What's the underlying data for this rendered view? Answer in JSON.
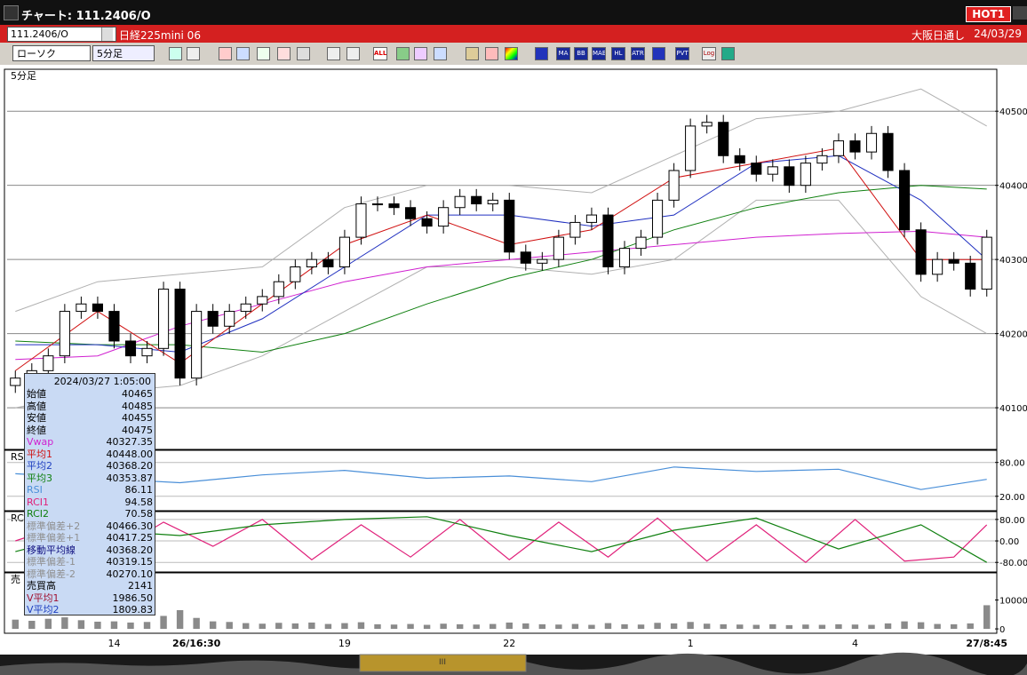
{
  "window": {
    "title": "チャート: 111.2406/O",
    "badge": "HOT1"
  },
  "header": {
    "symbol": "111.2406/O",
    "name": "日経225mini 06",
    "session": "大阪日通し",
    "date": "24/03/29"
  },
  "toolbar": {
    "chart_type": "ローソク",
    "interval": "5分足",
    "icons": [
      "ALL",
      "MA",
      "BB",
      "MAE",
      "HL",
      "ATR",
      "PVT",
      "Log"
    ]
  },
  "info_panel": {
    "datetime": "2024/03/27 1:05:00",
    "rows": [
      {
        "label": "始値",
        "value": "40465",
        "color": "#000000"
      },
      {
        "label": "高値",
        "value": "40485",
        "color": "#000000"
      },
      {
        "label": "安値",
        "value": "40455",
        "color": "#000000"
      },
      {
        "label": "終値",
        "value": "40475",
        "color": "#000000"
      },
      {
        "label": "Vwap",
        "value": "40327.35",
        "color": "#d020d0"
      },
      {
        "label": "平均1",
        "value": "40448.00",
        "color": "#d01010"
      },
      {
        "label": "平均2",
        "value": "40368.20",
        "color": "#2040c0"
      },
      {
        "label": "平均3",
        "value": "40353.87",
        "color": "#108010"
      },
      {
        "label": "RSI",
        "value": "86.11",
        "color": "#4a8fd8"
      },
      {
        "label": "RCI1",
        "value": "94.58",
        "color": "#e0207a"
      },
      {
        "label": "RCI2",
        "value": "70.58",
        "color": "#108010"
      },
      {
        "label": "標準偏差+2",
        "value": "40466.30",
        "color": "#909090"
      },
      {
        "label": "標準偏差+1",
        "value": "40417.25",
        "color": "#909090"
      },
      {
        "label": "移動平均線",
        "value": "40368.20",
        "color": "#101080"
      },
      {
        "label": "標準偏差-1",
        "value": "40319.15",
        "color": "#909090"
      },
      {
        "label": "標準偏差-2",
        "value": "40270.10",
        "color": "#909090"
      },
      {
        "label": "売買高",
        "value": "2141",
        "color": "#000000"
      },
      {
        "label": "V平均1",
        "value": "1986.50",
        "color": "#a01030"
      },
      {
        "label": "V平均2",
        "value": "1809.83",
        "color": "#2040c0"
      }
    ]
  },
  "chart_data": [
    {
      "type": "candlestick",
      "label": "5分足",
      "categories": [
        null,
        null,
        null,
        null,
        null,
        null,
        "14",
        null,
        null,
        null,
        null,
        "26/16:30",
        null,
        null,
        null,
        null,
        null,
        null,
        null,
        null,
        "19",
        null,
        null,
        null,
        null,
        null,
        null,
        null,
        null,
        null,
        "22",
        null,
        null,
        null,
        null,
        null,
        null,
        null,
        null,
        null,
        null,
        "1",
        null,
        null,
        null,
        null,
        null,
        null,
        null,
        null,
        null,
        "4",
        null,
        null,
        null,
        null,
        null,
        null,
        null,
        "27/8:45"
      ],
      "open": [
        40130,
        40140,
        40150,
        40170,
        40230,
        40240,
        40230,
        40190,
        40170,
        40180,
        40260,
        40140,
        40230,
        40210,
        40230,
        40240,
        40250,
        40270,
        40290,
        40300,
        40290,
        40330,
        40375,
        40375,
        40370,
        40355,
        40345,
        40370,
        40385,
        40375,
        40380,
        40310,
        40295,
        40300,
        40330,
        40350,
        40360,
        40290,
        40315,
        40330,
        40380,
        40420,
        40480,
        40485,
        40440,
        40430,
        40415,
        40425,
        40400,
        40430,
        40440,
        40460,
        40445,
        40470,
        40420,
        40340,
        40280,
        40300,
        40295,
        40260
      ],
      "high": [
        40150,
        40160,
        40180,
        40240,
        40250,
        40250,
        40240,
        40200,
        40190,
        40270,
        40270,
        40240,
        40240,
        40240,
        40250,
        40260,
        40280,
        40300,
        40310,
        40310,
        40340,
        40385,
        40385,
        40385,
        40380,
        40365,
        40380,
        40395,
        40395,
        40390,
        40390,
        40320,
        40310,
        40340,
        40360,
        40370,
        40370,
        40325,
        40340,
        40390,
        40430,
        40490,
        40495,
        40495,
        40450,
        40440,
        40435,
        40435,
        40440,
        40450,
        40470,
        40470,
        40480,
        40480,
        40430,
        40350,
        40310,
        40310,
        40305,
        40340
      ],
      "low": [
        40120,
        40130,
        40140,
        40160,
        40220,
        40220,
        40180,
        40160,
        40160,
        40170,
        40130,
        40130,
        40200,
        40200,
        40220,
        40230,
        40240,
        40260,
        40280,
        40280,
        40280,
        40320,
        40365,
        40360,
        40345,
        40335,
        40335,
        40360,
        40365,
        40365,
        40300,
        40285,
        40285,
        40290,
        40320,
        40340,
        40280,
        40280,
        40305,
        40320,
        40370,
        40410,
        40470,
        40430,
        40420,
        40405,
        40405,
        40390,
        40390,
        40420,
        40430,
        40435,
        40435,
        40410,
        40330,
        40270,
        40270,
        40285,
        40250,
        40250
      ],
      "close": [
        40140,
        40150,
        40170,
        40230,
        40240,
        40230,
        40190,
        40170,
        40180,
        40260,
        40140,
        40230,
        40210,
        40230,
        40240,
        40250,
        40270,
        40290,
        40300,
        40290,
        40330,
        40375,
        40375,
        40370,
        40355,
        40345,
        40370,
        40385,
        40375,
        40380,
        40310,
        40295,
        40300,
        40330,
        40350,
        40360,
        40290,
        40315,
        40330,
        40380,
        40420,
        40480,
        40485,
        40440,
        40430,
        40415,
        40425,
        40400,
        40430,
        40440,
        40460,
        40445,
        40470,
        40420,
        40340,
        40280,
        40300,
        40295,
        40260,
        40330
      ],
      "up_color": "#ffffff",
      "down_color": "#000000",
      "ylim": [
        40045,
        40535
      ],
      "yticks": [
        40100,
        40200,
        40300,
        40400,
        40500
      ],
      "grid": true,
      "overlays": [
        {
          "color": "#b0b0b0",
          "x": [
            0,
            5,
            10,
            15,
            20,
            25,
            30,
            35,
            40,
            45,
            50,
            55,
            59
          ],
          "values": [
            40230,
            40270,
            40280,
            40290,
            40370,
            40400,
            40400,
            40390,
            40440,
            40490,
            40500,
            40530,
            40480
          ]
        },
        {
          "color": "#b0b0b0",
          "x": [
            0,
            5,
            10,
            15,
            20,
            25,
            30,
            35,
            40,
            45,
            50,
            55,
            59
          ],
          "values": [
            40100,
            40120,
            40130,
            40170,
            40230,
            40290,
            40290,
            40280,
            40300,
            40380,
            40380,
            40250,
            40200
          ]
        },
        {
          "color": "#d020d0",
          "x": [
            0,
            5,
            10,
            15,
            20,
            25,
            30,
            35,
            40,
            45,
            50,
            55,
            59
          ],
          "values": [
            40165,
            40170,
            40210,
            40240,
            40270,
            40290,
            40300,
            40310,
            40320,
            40330,
            40335,
            40338,
            40330
          ]
        },
        {
          "color": "#108010",
          "x": [
            0,
            5,
            10,
            15,
            20,
            25,
            30,
            35,
            40,
            45,
            50,
            55,
            59
          ],
          "values": [
            40190,
            40185,
            40185,
            40175,
            40200,
            40240,
            40275,
            40300,
            40340,
            40370,
            40390,
            40400,
            40395
          ]
        },
        {
          "color": "#2030c0",
          "x": [
            0,
            5,
            10,
            15,
            20,
            25,
            30,
            35,
            40,
            45,
            50,
            55,
            59
          ],
          "values": [
            40185,
            40185,
            40175,
            40220,
            40290,
            40360,
            40360,
            40345,
            40360,
            40430,
            40440,
            40380,
            40300
          ]
        },
        {
          "color": "#d01010",
          "x": [
            0,
            5,
            10,
            15,
            20,
            25,
            30,
            35,
            40,
            45,
            50,
            55,
            59
          ],
          "values": [
            40150,
            40230,
            40160,
            40240,
            40320,
            40360,
            40320,
            40340,
            40410,
            40430,
            40450,
            40300,
            40300
          ]
        }
      ]
    },
    {
      "type": "line",
      "label": "RS",
      "ylim": [
        -4,
        100
      ],
      "yticks": [
        {
          "value": 80,
          "label": "80.00"
        },
        {
          "value": 20,
          "label": "20.00"
        }
      ],
      "grid": true,
      "series": [
        {
          "color": "#4a8fd8",
          "x": [
            0,
            5,
            10,
            15,
            20,
            25,
            30,
            35,
            40,
            45,
            50,
            55,
            59
          ],
          "values": [
            60,
            52,
            44,
            58,
            66,
            52,
            56,
            46,
            72,
            64,
            68,
            32,
            50
          ]
        }
      ]
    },
    {
      "type": "line",
      "label": "RC",
      "ylim": [
        -109,
        106
      ],
      "yticks": [
        {
          "value": 80,
          "label": "80.00"
        },
        {
          "value": 0,
          "label": "0.00"
        },
        {
          "value": -80,
          "label": "-80.00"
        }
      ],
      "grid": true,
      "series": [
        {
          "color": "#e0207a",
          "x": [
            0,
            3,
            6,
            9,
            12,
            15,
            18,
            21,
            24,
            27,
            30,
            33,
            36,
            39,
            42,
            45,
            48,
            51,
            54,
            57,
            59
          ],
          "values": [
            0,
            60,
            -40,
            70,
            -20,
            80,
            -70,
            60,
            -60,
            80,
            -70,
            70,
            -60,
            85,
            -75,
            60,
            -80,
            80,
            -75,
            -60,
            60
          ]
        },
        {
          "color": "#108010",
          "x": [
            0,
            5,
            10,
            15,
            20,
            25,
            30,
            35,
            40,
            45,
            50,
            55,
            59
          ],
          "values": [
            -40,
            40,
            20,
            60,
            80,
            90,
            20,
            -40,
            40,
            85,
            -30,
            60,
            -80
          ]
        }
      ]
    },
    {
      "type": "bar",
      "label": "売",
      "color": "#8a8a8a",
      "ylim": [
        -900,
        18800
      ],
      "yticks": [
        10000,
        0
      ],
      "values": [
        3200,
        2800,
        3500,
        4000,
        3000,
        2500,
        2600,
        2200,
        2400,
        4500,
        6500,
        3800,
        2600,
        2400,
        2000,
        1800,
        2100,
        1900,
        2200,
        1700,
        2000,
        2300,
        1600,
        1500,
        1700,
        1400,
        1800,
        1600,
        1500,
        1700,
        2200,
        1900,
        1600,
        1500,
        1700,
        1400,
        2000,
        1600,
        1500,
        2100,
        1900,
        2400,
        1800,
        1600,
        1500,
        1400,
        1600,
        1300,
        1500,
        1400,
        1600,
        1500,
        1400,
        1900,
        2600,
        2300,
        1700,
        1600,
        1900,
        8200
      ]
    }
  ]
}
